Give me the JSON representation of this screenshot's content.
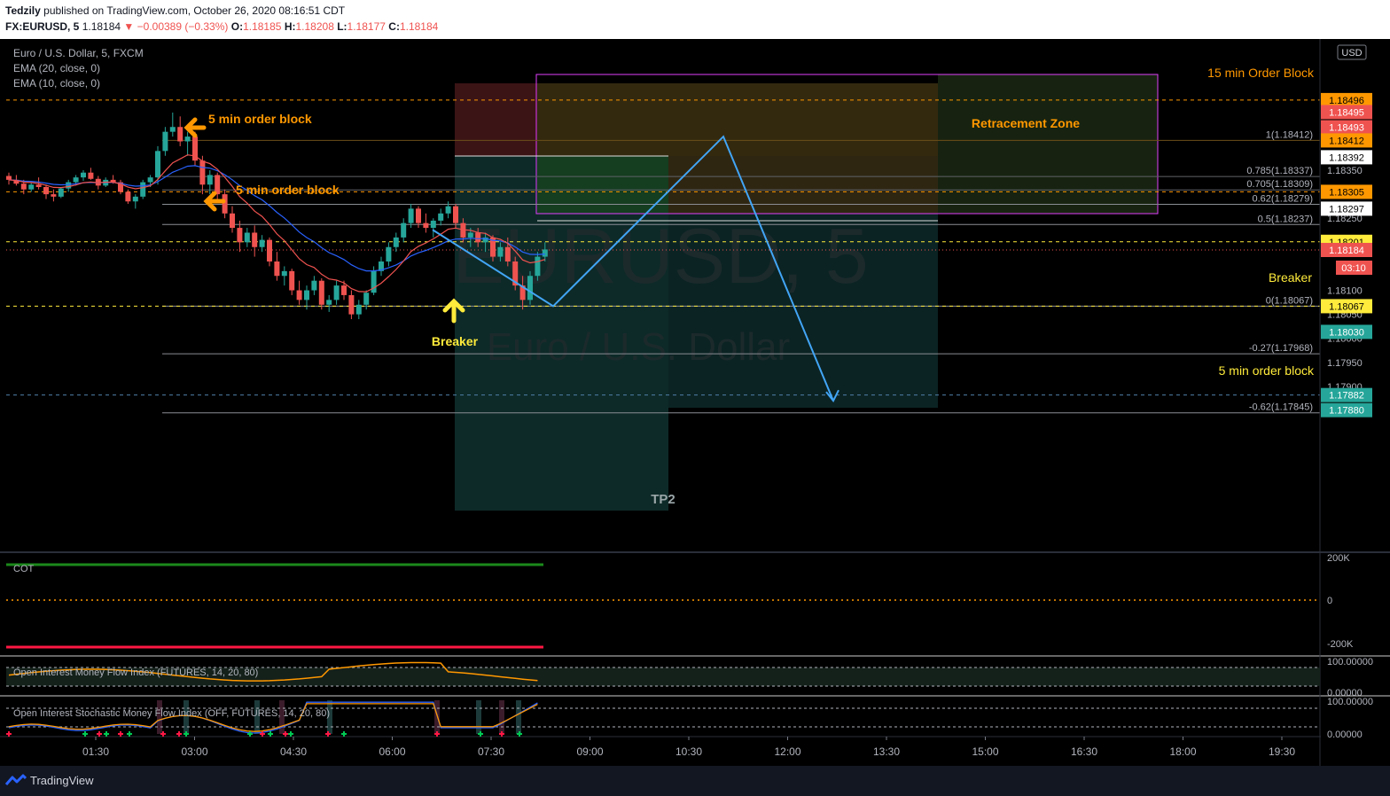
{
  "header": {
    "author": "Tedzily",
    "published": "published on TradingView.com, October 26, 2020 08:16:51 CDT",
    "symbol": "FX:EURUSD, 5",
    "last": "1.18184",
    "change": "▼ −0.00389 (−0.33%)",
    "o_label": "O:",
    "o": "1.18185",
    "h_label": "H:",
    "h": "1.18208",
    "l_label": "L:",
    "l": "1.18177",
    "c_label": "C:",
    "c": "1.18184"
  },
  "legend": {
    "title": "Euro / U.S. Dollar, 5, FXCM",
    "ema20": "EMA (20, close, 0)",
    "ema10": "EMA (10, close, 0)"
  },
  "watermark": {
    "symbol": "EURUSD, 5",
    "name": "Euro / U.S. Dollar"
  },
  "currency": "USD",
  "colors": {
    "up": "#26a69a",
    "down": "#ef5350",
    "ema20": "#2962ff",
    "ema10": "#ef5350",
    "annotation_orange": "#ff9800",
    "annotation_yellow": "#ffeb3b",
    "path_blue": "#42a5f5",
    "box_magenta": "#e040fb"
  },
  "chart_data": {
    "type": "candlestick",
    "x_ticks": [
      "01:30",
      "03:00",
      "04:30",
      "06:00",
      "07:30",
      "09:00",
      "10:30",
      "12:00",
      "13:30",
      "15:00",
      "16:30",
      "18:00",
      "19:30"
    ],
    "y_ticks": [
      "1.18350",
      "1.18250",
      "1.18100",
      "1.18050",
      "1.18000",
      "1.17950",
      "1.17900"
    ],
    "ylim": [
      1.1784,
      1.1855
    ],
    "candles_ohlc": [
      [
        1.18338,
        1.18345,
        1.1832,
        1.1833
      ],
      [
        1.1833,
        1.1834,
        1.18318,
        1.18322
      ],
      [
        1.18322,
        1.1833,
        1.183,
        1.1831
      ],
      [
        1.1831,
        1.18325,
        1.18305,
        1.1832
      ],
      [
        1.1832,
        1.18335,
        1.1831,
        1.18315
      ],
      [
        1.18315,
        1.1832,
        1.1829,
        1.183
      ],
      [
        1.183,
        1.1831,
        1.18285,
        1.18295
      ],
      [
        1.18295,
        1.18315,
        1.18292,
        1.18312
      ],
      [
        1.18312,
        1.1833,
        1.18305,
        1.18325
      ],
      [
        1.18325,
        1.1834,
        1.18318,
        1.18335
      ],
      [
        1.18335,
        1.1835,
        1.18328,
        1.18345
      ],
      [
        1.18345,
        1.18355,
        1.1833,
        1.18332
      ],
      [
        1.18332,
        1.18338,
        1.1831,
        1.18318
      ],
      [
        1.18318,
        1.18335,
        1.18315,
        1.1833
      ],
      [
        1.1833,
        1.1834,
        1.18322,
        1.18325
      ],
      [
        1.18325,
        1.1833,
        1.183,
        1.18305
      ],
      [
        1.18305,
        1.1831,
        1.1828,
        1.18285
      ],
      [
        1.18285,
        1.183,
        1.1827,
        1.18295
      ],
      [
        1.18295,
        1.1833,
        1.1829,
        1.18325
      ],
      [
        1.18325,
        1.1834,
        1.18315,
        1.18335
      ],
      [
        1.18335,
        1.184,
        1.1832,
        1.1839
      ],
      [
        1.1839,
        1.1844,
        1.1838,
        1.1843
      ],
      [
        1.1843,
        1.1847,
        1.1842,
        1.1844
      ],
      [
        1.1844,
        1.18462,
        1.184,
        1.1841
      ],
      [
        1.1841,
        1.1843,
        1.1838,
        1.1842
      ],
      [
        1.1842,
        1.1843,
        1.1836,
        1.1837
      ],
      [
        1.1837,
        1.1838,
        1.183,
        1.1832
      ],
      [
        1.1832,
        1.1835,
        1.183,
        1.1834
      ],
      [
        1.1834,
        1.18345,
        1.1829,
        1.183
      ],
      [
        1.183,
        1.1831,
        1.1825,
        1.1826
      ],
      [
        1.1826,
        1.18275,
        1.1822,
        1.1823
      ],
      [
        1.1823,
        1.18245,
        1.1818,
        1.182
      ],
      [
        1.182,
        1.1823,
        1.1819,
        1.1822
      ],
      [
        1.1822,
        1.18235,
        1.1817,
        1.1819
      ],
      [
        1.1819,
        1.18215,
        1.1818,
        1.18205
      ],
      [
        1.18205,
        1.1821,
        1.1815,
        1.1816
      ],
      [
        1.1816,
        1.1818,
        1.1812,
        1.1813
      ],
      [
        1.1813,
        1.1815,
        1.1811,
        1.1814
      ],
      [
        1.1814,
        1.18145,
        1.1809,
        1.181
      ],
      [
        1.181,
        1.1812,
        1.1807,
        1.1808
      ],
      [
        1.1808,
        1.1811,
        1.1806,
        1.181
      ],
      [
        1.181,
        1.1813,
        1.1809,
        1.1812
      ],
      [
        1.1812,
        1.18125,
        1.1806,
        1.1807
      ],
      [
        1.1807,
        1.1809,
        1.18055,
        1.1808
      ],
      [
        1.1808,
        1.1812,
        1.1807,
        1.1811
      ],
      [
        1.1811,
        1.1812,
        1.1808,
        1.1809
      ],
      [
        1.1809,
        1.181,
        1.1804,
        1.1805
      ],
      [
        1.1805,
        1.1808,
        1.1804,
        1.1807
      ],
      [
        1.1807,
        1.181,
        1.1806,
        1.18095
      ],
      [
        1.18095,
        1.1815,
        1.1809,
        1.1814
      ],
      [
        1.1814,
        1.1817,
        1.1813,
        1.1816
      ],
      [
        1.1816,
        1.182,
        1.1815,
        1.1819
      ],
      [
        1.1819,
        1.1822,
        1.1818,
        1.1821
      ],
      [
        1.1821,
        1.1825,
        1.182,
        1.1824
      ],
      [
        1.1824,
        1.1828,
        1.1823,
        1.1827
      ],
      [
        1.1827,
        1.18275,
        1.1823,
        1.1824
      ],
      [
        1.1824,
        1.1826,
        1.1822,
        1.1823
      ],
      [
        1.1823,
        1.1825,
        1.1821,
        1.18245
      ],
      [
        1.18245,
        1.1827,
        1.18235,
        1.1826
      ],
      [
        1.1826,
        1.18285,
        1.1825,
        1.18275
      ],
      [
        1.18275,
        1.1828,
        1.1823,
        1.1824
      ],
      [
        1.1824,
        1.1825,
        1.182,
        1.1821
      ],
      [
        1.1821,
        1.1823,
        1.1819,
        1.1822
      ],
      [
        1.1822,
        1.1823,
        1.1819,
        1.182
      ],
      [
        1.182,
        1.1822,
        1.1818,
        1.1821
      ],
      [
        1.1821,
        1.18215,
        1.1816,
        1.1817
      ],
      [
        1.1817,
        1.182,
        1.1816,
        1.1819
      ],
      [
        1.1819,
        1.1821,
        1.1815,
        1.1816
      ],
      [
        1.1816,
        1.1817,
        1.181,
        1.1811
      ],
      [
        1.1811,
        1.1813,
        1.1806,
        1.1808
      ],
      [
        1.1808,
        1.1814,
        1.1807,
        1.1813
      ],
      [
        1.1813,
        1.1818,
        1.1812,
        1.1817
      ],
      [
        1.1817,
        1.182,
        1.1816,
        1.18185
      ]
    ],
    "levels": {
      "order_block_15m_high": 1.18496,
      "order_block_15m_low": 1.18305,
      "fib_1": 1.18412,
      "fib_0786": 1.18337,
      "fib_0705": 1.18309,
      "fib_062": 1.18279,
      "fib_05": 1.18237,
      "fib_0": 1.18067,
      "fib_n027": 1.17968,
      "fib_n062": 1.17845,
      "breaker": 1.18201,
      "last": 1.18184,
      "order_block_5m": 1.18067,
      "tp2": 1.17882
    },
    "projection": [
      [
        1.18067,
        1.1842
      ],
      [
        1.1842,
        1.1787
      ]
    ]
  },
  "fib_labels": [
    "1(1.18412)",
    "0.785(1.18337)",
    "0.705(1.18309)",
    "0.62(1.18279)",
    "0.5(1.18237)",
    "0(1.18067)",
    "-0.27(1.17968)",
    "-0.62(1.17845)"
  ],
  "price_badges": [
    "1.18496",
    "1.18495",
    "1.18493",
    "1.18412",
    "1.18392",
    "1.18305",
    "1.18297",
    "1.18201",
    "1.18184",
    "03:10",
    "1.18067",
    "1.18030",
    "1.17882",
    "1.17880"
  ],
  "annotations": {
    "ob15": "15 min Order Block",
    "retrace": "Retracement  Zone",
    "ob5_a": "5 min order block",
    "ob5_b": "5 min order block",
    "ob5_c": "5 min order block",
    "breaker_left": "Breaker",
    "breaker_right": "Breaker",
    "tp2": "TP2"
  },
  "panes": {
    "cot": {
      "label": "COT",
      "ticks": [
        "200K",
        "0",
        "-200K"
      ]
    },
    "oimfi": {
      "label": "Open Interest Money Flow Index (FUTURES, 14, 20, 80)",
      "ticks": [
        "100.00000",
        "0.00000"
      ]
    },
    "oismfi": {
      "label": "Open Interest Stochastic Money Flow Index (OFF, FUTURES, 14, 20, 80)",
      "ticks": [
        "100.00000",
        "0.00000"
      ]
    }
  },
  "footer": {
    "brand": "TradingView"
  }
}
